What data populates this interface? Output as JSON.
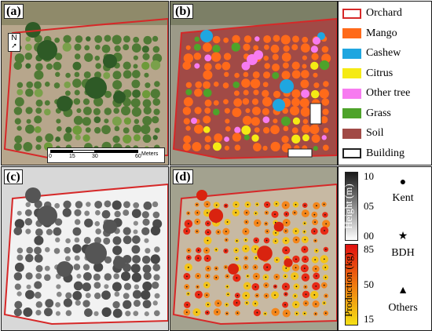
{
  "panels": {
    "a": {
      "label": "(a)",
      "north_symbol": "N"
    },
    "b": {
      "label": "(b)"
    },
    "c": {
      "label": "(c)"
    },
    "d": {
      "label": "(d)"
    }
  },
  "scale_bar": {
    "ticks": [
      "0",
      "15",
      "30",
      "60"
    ],
    "unit": "Meters"
  },
  "class_legend": [
    {
      "label": "Orchard",
      "color": "#ffffff",
      "border": "#d62828"
    },
    {
      "label": "Mango",
      "color": "#ff6a1a",
      "border": "#ff6a1a"
    },
    {
      "label": "Cashew",
      "color": "#1fa6e0",
      "border": "#1fa6e0"
    },
    {
      "label": "Citrus",
      "color": "#f5ea14",
      "border": "#f5ea14"
    },
    {
      "label": "Other tree",
      "color": "#f77bf0",
      "border": "#f77bf0"
    },
    {
      "label": "Grass",
      "color": "#4ea32a",
      "border": "#4ea32a"
    },
    {
      "label": "Soil",
      "color": "#a14a46",
      "border": "#a14a46"
    },
    {
      "label": "Building",
      "color": "#ffffff",
      "border": "#222222"
    }
  ],
  "height_legend": {
    "title": "Height (m)",
    "ticks": [
      "10",
      "05",
      "00"
    ]
  },
  "production_legend": {
    "title": "Production (kg)",
    "ticks": [
      "85",
      "50",
      "15"
    ]
  },
  "symbol_legend": [
    {
      "symbol": "●",
      "label": "Kent"
    },
    {
      "symbol": "★",
      "label": "BDH"
    },
    {
      "symbol": "▲",
      "label": "Others"
    }
  ],
  "colors": {
    "soil": "#a14a46",
    "mango": "#ff6a1a",
    "cashew": "#1fa6e0",
    "citrus": "#f5ea14",
    "other": "#f77bf0",
    "grass": "#4ea32a",
    "boundary": "#d62828"
  }
}
